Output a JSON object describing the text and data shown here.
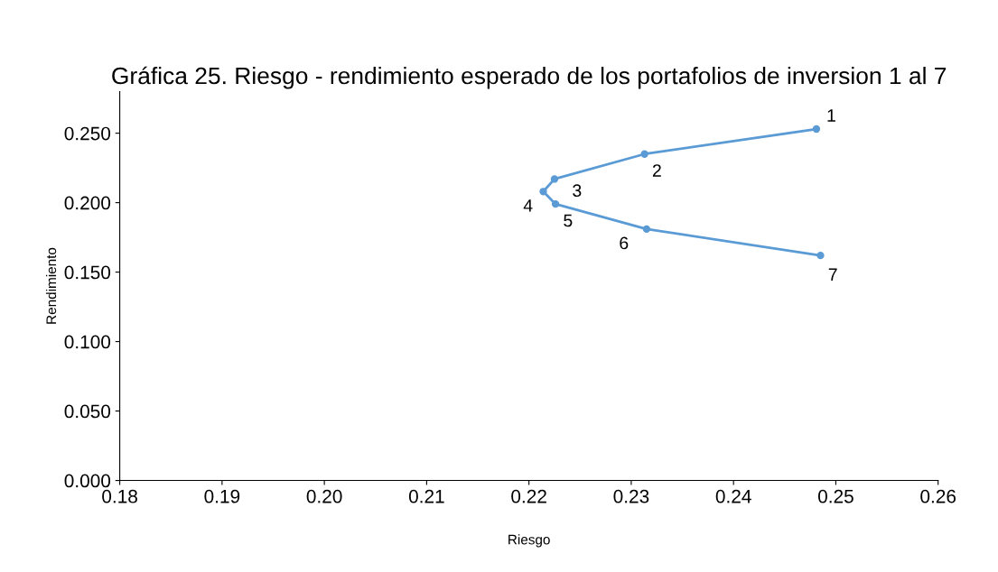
{
  "chart_data": {
    "type": "line",
    "title": "Gráfica 25. Riesgo - rendimiento esperado de los portafolios de inversion 1 al 7",
    "xlabel": "Riesgo",
    "ylabel": "Rendimiento",
    "series": [
      {
        "color": "#5b9bd5",
        "x": [
          0.2481,
          0.2313,
          0.2225,
          0.2214,
          0.2226,
          0.2315,
          0.2485
        ],
        "values": [
          0.253,
          0.235,
          0.217,
          0.208,
          0.199,
          0.181,
          0.162
        ]
      }
    ],
    "marker": "circle",
    "line_style": "solid",
    "grid": false,
    "legend": false,
    "xlim": [
      0.18,
      0.26
    ],
    "xticks": [
      0.18,
      0.19,
      {
        "value": 0.2,
        "label": "0.20"
      },
      0.21,
      0.22,
      0.23,
      0.24,
      0.25,
      0.26
    ],
    "ylim": [
      0,
      0.28
    ],
    "yticks": [
      {
        "value": 0,
        "label": "0.000"
      },
      {
        "value": 0.05,
        "label": "0.050"
      },
      {
        "value": 0.1,
        "label": "0.100"
      },
      {
        "value": 0.15,
        "label": "0.150"
      },
      {
        "value": 0.2,
        "label": "0.200"
      },
      {
        "value": 0.25,
        "label": "0.250"
      }
    ],
    "annotations": [
      {
        "text": "1",
        "x": 0.2481,
        "y": 0.253
      },
      {
        "text": "2",
        "x": 0.2313,
        "y": 0.235
      },
      {
        "text": "3",
        "x": 0.2225,
        "y": 0.217
      },
      {
        "text": "4",
        "x": 0.2214,
        "y": 0.208
      },
      {
        "text": "5",
        "x": 0.2226,
        "y": 0.199
      },
      {
        "text": "6",
        "x": 0.2315,
        "y": 0.181
      },
      {
        "text": "7",
        "x": 0.2485,
        "y": 0.162
      }
    ]
  }
}
